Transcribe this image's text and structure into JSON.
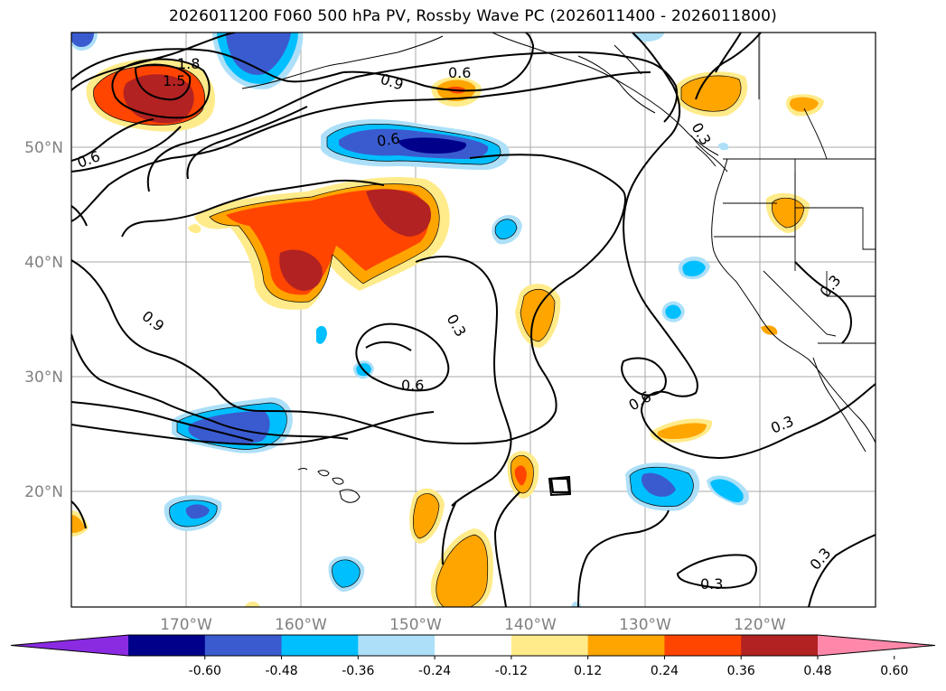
{
  "title": "2026011200 F060 500 hPa PV, Rossby Wave PC (2026011400 - 2026011800)",
  "lat_labels": [
    "50°N",
    "40°N",
    "30°N",
    "20°N"
  ],
  "lon_labels": [
    "170°W",
    "160°W",
    "150°W",
    "140°W",
    "130°W",
    "120°W"
  ],
  "contour_labels": [
    "1.8",
    "1.5",
    "0.9",
    "0.6",
    "0.6",
    "0.6",
    "0.9",
    "0.3",
    "0.6",
    "0.6",
    "0.3",
    "0.3",
    "0.3",
    "0.3",
    "0.3"
  ],
  "colorbar": {
    "ticks": [
      "-0.60",
      "-0.48",
      "-0.36",
      "-0.24",
      "-0.12",
      "0.12",
      "0.24",
      "0.36",
      "0.48",
      "0.60"
    ],
    "colors": [
      "#8a2be2",
      "#00008b",
      "#3a5bd0",
      "#00bfff",
      "#ade0f8",
      "#ffffff",
      "#ffeb8a",
      "#ffa500",
      "#ff4500",
      "#b22222",
      "#ff88aa"
    ]
  },
  "colors": {
    "neg_light": "#ade0f8",
    "neg_mid": "#00bfff",
    "neg_strong": "#3a5bd0",
    "neg_deep": "#00008b",
    "pos_light": "#ffeb8a",
    "pos_mid": "#ffa500",
    "pos_strong": "#ff4500",
    "pos_deep": "#b22222"
  }
}
